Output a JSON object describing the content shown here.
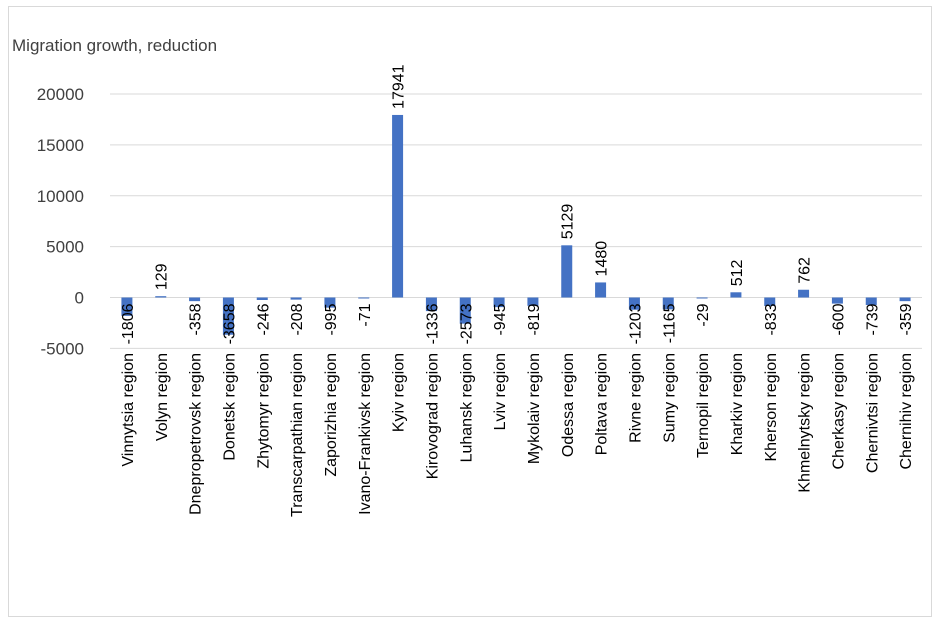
{
  "chart_data": {
    "type": "bar",
    "title": "Migration growth, reduction",
    "xlabel": "",
    "ylabel": "",
    "ylim": [
      -5000,
      20000
    ],
    "yticks": [
      -5000,
      0,
      5000,
      10000,
      15000,
      20000
    ],
    "grid": true,
    "legend": "none",
    "colors": {
      "bar": "#4472c4",
      "grid": "#d9d9d9"
    },
    "categories": [
      "Vinnytsia region",
      "Volyn region",
      "Dnepropetrovsk region",
      "Donetsk region",
      "Zhytomyr region",
      "Transcarpathian region",
      "Zaporizhia region",
      "Ivano-Frankivsk region",
      "Kyiv region",
      "Kirovograd region",
      "Luhansk region",
      "Lviv region",
      "Mykolaiv region",
      "Odessa region",
      "Poltava region",
      "Rivne region",
      "Sumy region",
      "Ternopil region",
      "Kharkiv region",
      "Kherson region",
      "Khmelnytsky region",
      "Cherkasy region",
      "Chernivtsi region",
      "Chernihiv region"
    ],
    "values": [
      -1806,
      129,
      -358,
      -3658,
      -246,
      -208,
      -995,
      -71,
      17941,
      -1336,
      -2573,
      -945,
      -819,
      5129,
      1480,
      -1203,
      -1165,
      -29,
      512,
      -833,
      762,
      -600,
      -739,
      -359
    ]
  }
}
